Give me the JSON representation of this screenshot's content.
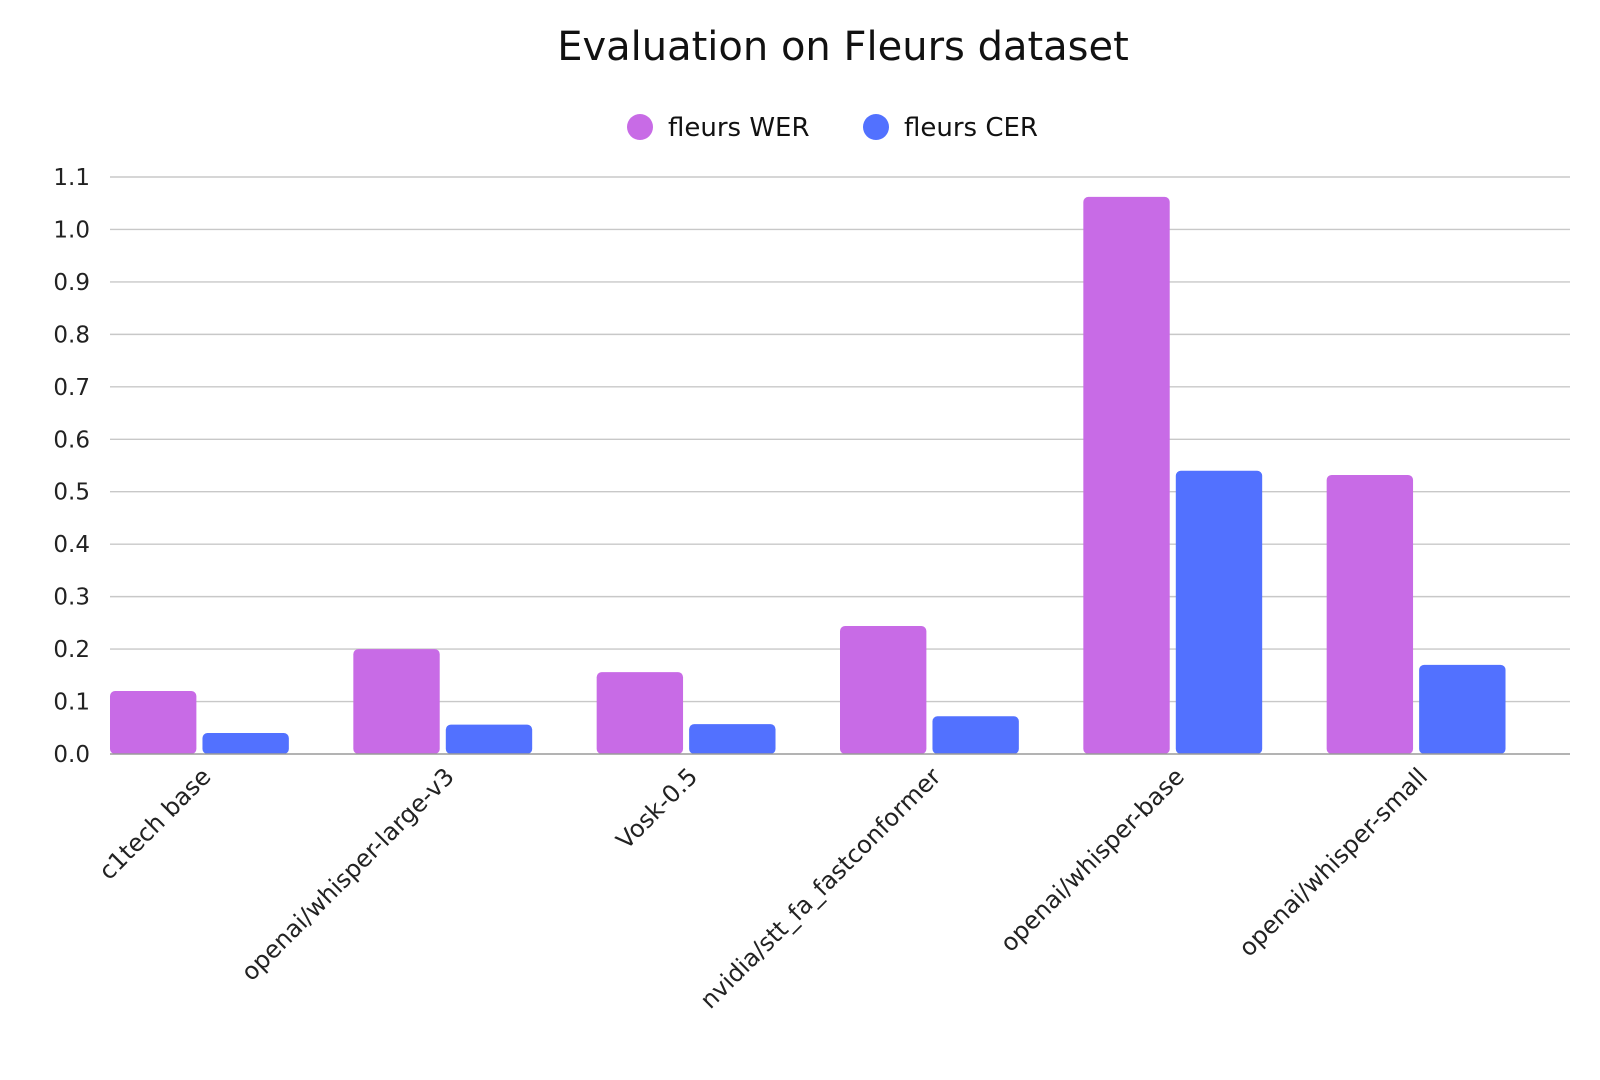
{
  "chart_data": {
    "type": "bar",
    "title": "Evaluation on Fleurs dataset",
    "xlabel": "",
    "ylabel": "",
    "categories": [
      "c1tech base",
      "openai/whisper-large-v3",
      "Vosk-0.5",
      "nvidia/stt_fa_fastconformer",
      "openai/whisper-base",
      "openai/whisper-small"
    ],
    "series": [
      {
        "name": "fleurs WER",
        "color": "#c86be6",
        "values": [
          0.12,
          0.2,
          0.156,
          0.244,
          1.062,
          0.532
        ]
      },
      {
        "name": "fleurs CER",
        "color": "#5271ff",
        "values": [
          0.04,
          0.056,
          0.057,
          0.072,
          0.54,
          0.17
        ]
      }
    ],
    "ylim": [
      0,
      1.1
    ],
    "yticks": [
      "0.0",
      "0.1",
      "0.2",
      "0.3",
      "0.4",
      "0.5",
      "0.6",
      "0.7",
      "0.8",
      "0.9",
      "1.0",
      "1.1"
    ],
    "grid": true,
    "legend_position": "top-center"
  }
}
